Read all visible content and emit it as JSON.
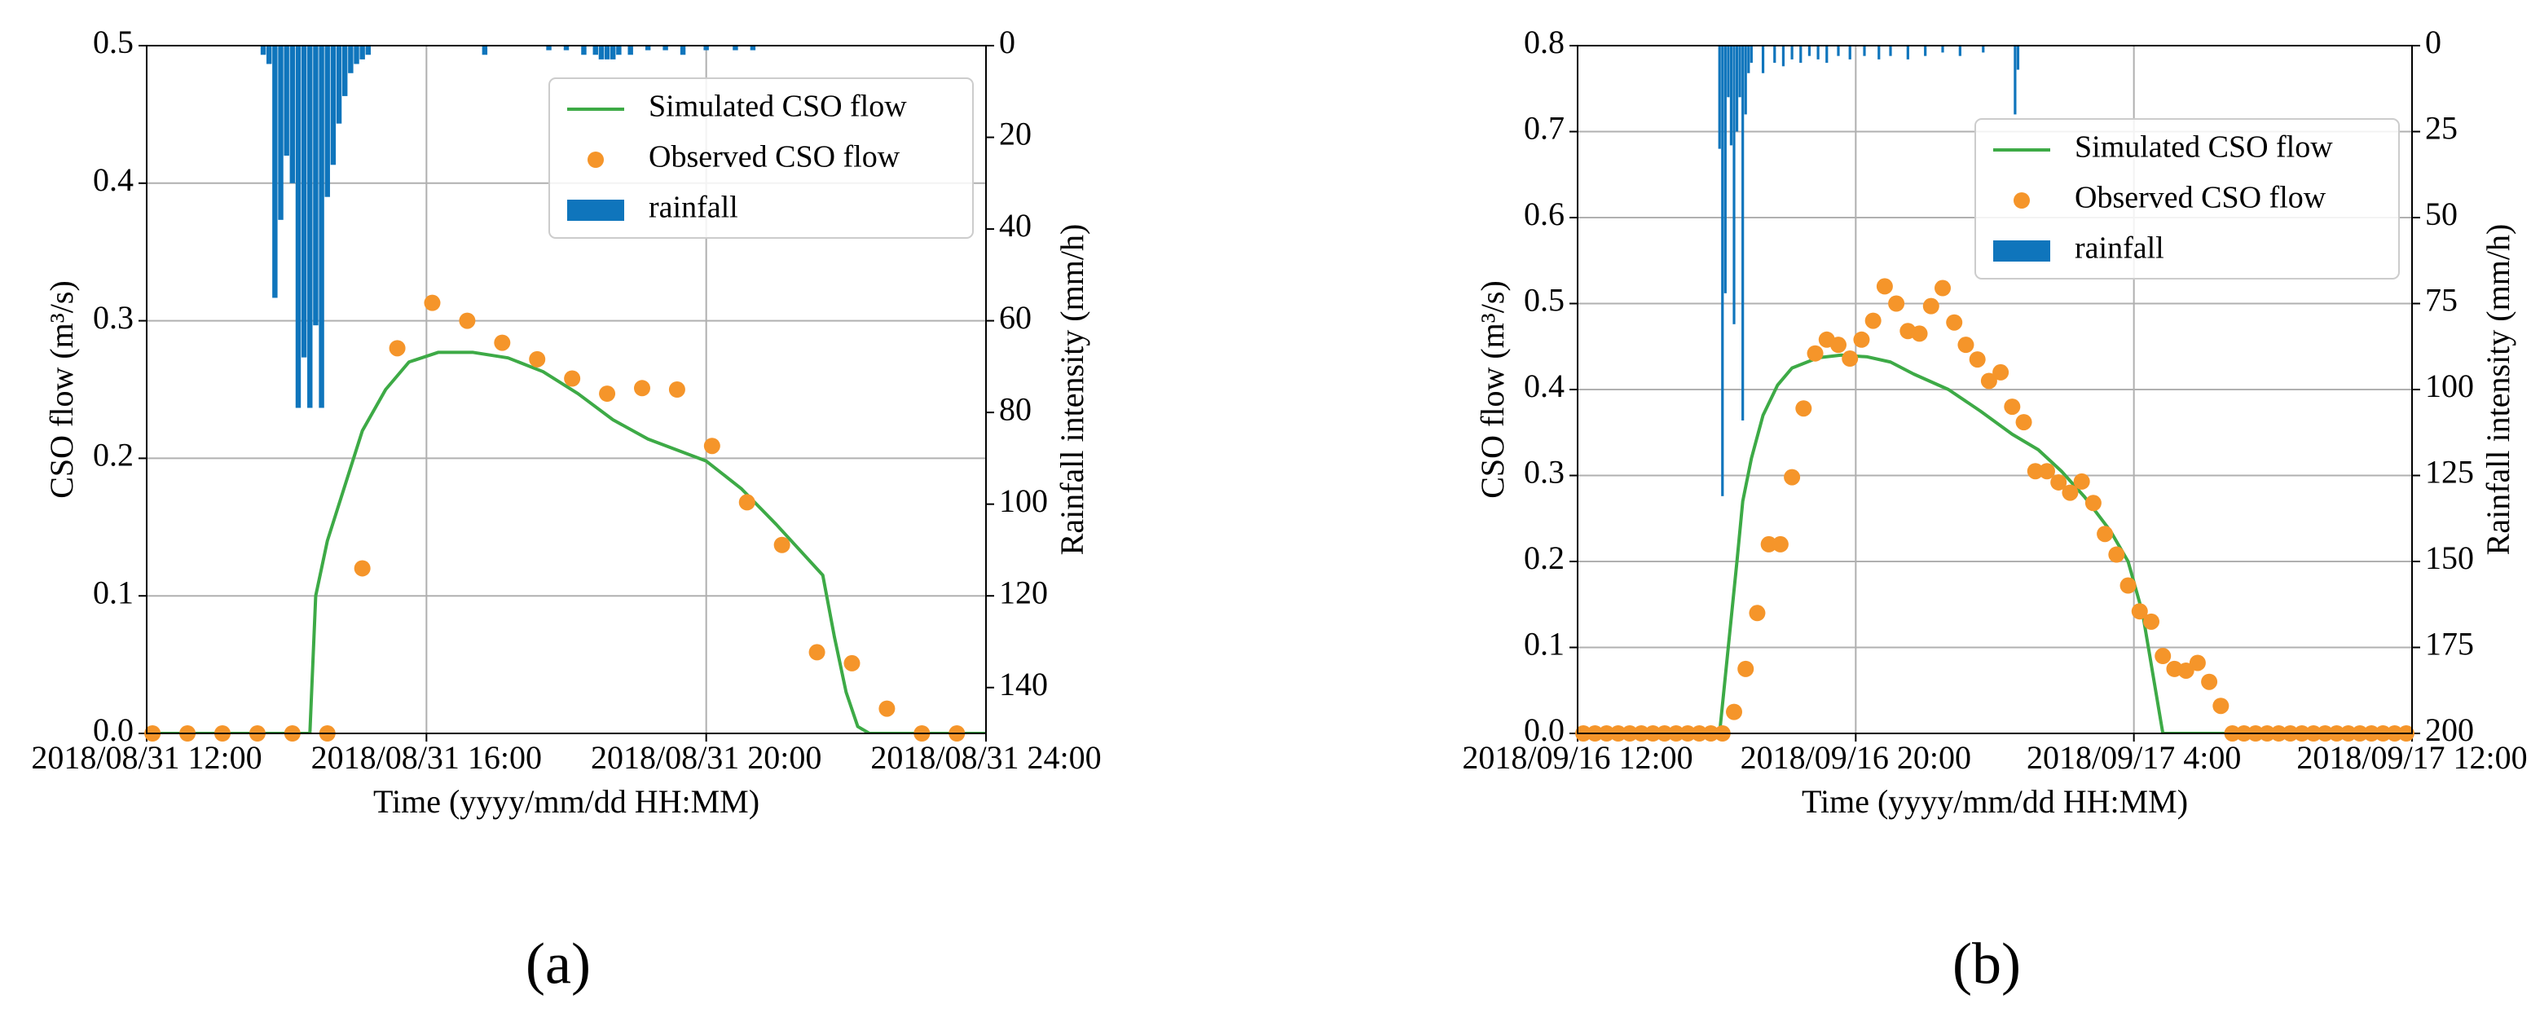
{
  "chart_data": [
    {
      "type": "combo",
      "caption": "(a)",
      "x_label": "Time (yyyy/mm/dd HH:MM)",
      "y_label": "CSO flow (m³/s)",
      "y2_label": "Rainfall intensity (mm/h)",
      "xlim": [
        "2018/08/31 12:00",
        "2018/08/31 24:00"
      ],
      "xticks": [
        "2018/08/31 12:00",
        "2018/08/31 16:00",
        "2018/08/31 20:00",
        "2018/08/31 24:00"
      ],
      "ylim": [
        0,
        0.5
      ],
      "yticks": [
        {
          "value": 0,
          "label": "0.0"
        },
        0.1,
        0.2,
        0.3,
        0.4,
        0.5
      ],
      "y2lim": [
        0,
        150
      ],
      "y2_inverted": true,
      "y2ticks": [
        0,
        20,
        40,
        60,
        80,
        100,
        120,
        140
      ],
      "grid": true,
      "legend": "upper right",
      "series": [
        {
          "name": "Simulated CSO flow",
          "type": "line",
          "color": "#3daa46",
          "x": [
            "2018/08/31 12:00",
            "2018/08/31 14:20",
            "2018/08/31 14:25",
            "2018/08/31 14:35",
            "2018/08/31 14:50",
            "2018/08/31 15:05",
            "2018/08/31 15:25",
            "2018/08/31 15:45",
            "2018/08/31 16:10",
            "2018/08/31 16:40",
            "2018/08/31 17:10",
            "2018/08/31 17:40",
            "2018/08/31 18:10",
            "2018/08/31 18:40",
            "2018/08/31 19:10",
            "2018/08/31 20:00",
            "2018/08/31 20:30",
            "2018/08/31 21:00",
            "2018/08/31 21:40",
            "2018/08/31 21:50",
            "2018/08/31 22:00",
            "2018/08/31 22:10",
            "2018/08/31 22:20",
            "2018/08/31 24:00"
          ],
          "values": [
            0,
            0,
            0.1,
            0.14,
            0.18,
            0.22,
            0.25,
            0.27,
            0.277,
            0.277,
            0.273,
            0.263,
            0.247,
            0.228,
            0.214,
            0.198,
            0.178,
            0.152,
            0.115,
            0.07,
            0.03,
            0.005,
            0,
            0
          ]
        },
        {
          "name": "Observed CSO flow",
          "type": "scatter",
          "color": "#f5952a",
          "x": [
            "2018/08/31 12:05",
            "2018/08/31 12:35",
            "2018/08/31 13:05",
            "2018/08/31 13:35",
            "2018/08/31 14:05",
            "2018/08/31 14:35",
            "2018/08/31 15:05",
            "2018/08/31 15:35",
            "2018/08/31 16:05",
            "2018/08/31 16:35",
            "2018/08/31 17:05",
            "2018/08/31 17:35",
            "2018/08/31 18:05",
            "2018/08/31 18:35",
            "2018/08/31 19:05",
            "2018/08/31 19:35",
            "2018/08/31 20:05",
            "2018/08/31 20:35",
            "2018/08/31 21:05",
            "2018/08/31 21:35",
            "2018/08/31 22:05",
            "2018/08/31 22:35",
            "2018/08/31 23:05",
            "2018/08/31 23:35"
          ],
          "values": [
            0,
            0,
            0,
            0,
            0,
            0,
            0.12,
            0.28,
            0.313,
            0.3,
            0.284,
            0.272,
            0.258,
            0.247,
            0.251,
            0.25,
            0.209,
            0.168,
            0.137,
            0.059,
            0.051,
            0.018,
            0,
            0
          ]
        },
        {
          "name": "rainfall",
          "type": "bar",
          "color": "#0f75bc",
          "axis": "y2",
          "x": [
            "2018/08/31 13:40",
            "2018/08/31 13:45",
            "2018/08/31 13:50",
            "2018/08/31 13:55",
            "2018/08/31 14:00",
            "2018/08/31 14:05",
            "2018/08/31 14:10",
            "2018/08/31 14:15",
            "2018/08/31 14:20",
            "2018/08/31 14:25",
            "2018/08/31 14:30",
            "2018/08/31 14:35",
            "2018/08/31 14:40",
            "2018/08/31 14:45",
            "2018/08/31 14:50",
            "2018/08/31 14:55",
            "2018/08/31 15:00",
            "2018/08/31 15:05",
            "2018/08/31 15:10",
            "2018/08/31 16:50",
            "2018/08/31 17:45",
            "2018/08/31 18:00",
            "2018/08/31 18:15",
            "2018/08/31 18:25",
            "2018/08/31 18:30",
            "2018/08/31 18:35",
            "2018/08/31 18:40",
            "2018/08/31 18:45",
            "2018/08/31 18:55",
            "2018/08/31 19:10",
            "2018/08/31 19:25",
            "2018/08/31 19:40",
            "2018/08/31 20:00",
            "2018/08/31 20:25",
            "2018/08/31 20:40"
          ],
          "values": [
            2,
            4,
            55,
            38,
            24,
            30,
            79,
            68,
            79,
            61,
            79,
            33,
            26,
            17,
            11,
            6,
            4,
            3,
            2,
            2,
            1,
            1,
            2,
            2,
            3,
            3,
            3,
            2,
            2,
            1,
            1,
            2,
            1,
            1,
            1
          ]
        }
      ]
    },
    {
      "type": "combo",
      "caption": "(b)",
      "x_label": "Time (yyyy/mm/dd HH:MM)",
      "y_label": "CSO flow (m³/s)",
      "y2_label": "Rainfall intensity (mm/h)",
      "xlim": [
        "2018/09/16 12:00",
        "2018/09/17 12:00"
      ],
      "xticks": [
        "2018/09/16 12:00",
        "2018/09/16 20:00",
        "2018/09/17 4:00",
        "2018/09/17 12:00"
      ],
      "ylim": [
        0,
        0.8
      ],
      "yticks": [
        {
          "value": 0,
          "label": "0.0"
        },
        0.1,
        0.2,
        0.3,
        0.4,
        0.5,
        0.6,
        0.7,
        0.8
      ],
      "y2lim": [
        0,
        200
      ],
      "y2_inverted": true,
      "y2ticks": [
        0,
        25,
        50,
        75,
        100,
        125,
        150,
        175,
        200
      ],
      "grid": true,
      "legend": "upper right",
      "series": [
        {
          "name": "Simulated CSO flow",
          "type": "line",
          "color": "#3daa46",
          "x": [
            "2018/09/16 12:00",
            "2018/09/16 16:05",
            "2018/09/16 16:20",
            "2018/09/16 16:35",
            "2018/09/16 16:45",
            "2018/09/16 17:00",
            "2018/09/16 17:20",
            "2018/09/16 17:45",
            "2018/09/16 18:10",
            "2018/09/16 18:55",
            "2018/09/16 19:35",
            "2018/09/16 20:20",
            "2018/09/16 21:00",
            "2018/09/16 21:40",
            "2018/09/16 22:40",
            "2018/09/16 23:35",
            "2018/09/17 0:30",
            "2018/09/17 1:15",
            "2018/09/17 1:55",
            "2018/09/17 2:35",
            "2018/09/17 3:20",
            "2018/09/17 3:50",
            "2018/09/17 4:15",
            "2018/09/17 4:35",
            "2018/09/17 4:50",
            "2018/09/17 12:00"
          ],
          "values": [
            0,
            0,
            0.1,
            0.2,
            0.27,
            0.32,
            0.37,
            0.405,
            0.425,
            0.437,
            0.44,
            0.438,
            0.432,
            0.418,
            0.4,
            0.375,
            0.348,
            0.33,
            0.305,
            0.275,
            0.235,
            0.2,
            0.14,
            0.06,
            0,
            0
          ]
        },
        {
          "name": "Observed CSO flow",
          "type": "scatter",
          "color": "#f5952a",
          "x": [
            "2018/09/16 12:10",
            "2018/09/16 12:30",
            "2018/09/16 12:50",
            "2018/09/16 13:10",
            "2018/09/16 13:30",
            "2018/09/16 13:50",
            "2018/09/16 14:10",
            "2018/09/16 14:30",
            "2018/09/16 14:50",
            "2018/09/16 15:10",
            "2018/09/16 15:30",
            "2018/09/16 15:50",
            "2018/09/16 16:10",
            "2018/09/16 16:30",
            "2018/09/16 16:50",
            "2018/09/16 17:10",
            "2018/09/16 17:30",
            "2018/09/16 17:50",
            "2018/09/16 18:10",
            "2018/09/16 18:30",
            "2018/09/16 18:50",
            "2018/09/16 19:10",
            "2018/09/16 19:30",
            "2018/09/16 19:50",
            "2018/09/16 20:10",
            "2018/09/16 20:30",
            "2018/09/16 20:50",
            "2018/09/16 21:10",
            "2018/09/16 21:30",
            "2018/09/16 21:50",
            "2018/09/16 22:10",
            "2018/09/16 22:30",
            "2018/09/16 22:50",
            "2018/09/16 23:10",
            "2018/09/16 23:30",
            "2018/09/16 23:50",
            "2018/09/17 0:10",
            "2018/09/17 0:30",
            "2018/09/17 0:50",
            "2018/09/17 1:10",
            "2018/09/17 1:30",
            "2018/09/17 1:50",
            "2018/09/17 2:10",
            "2018/09/17 2:30",
            "2018/09/17 2:50",
            "2018/09/17 3:10",
            "2018/09/17 3:30",
            "2018/09/17 3:50",
            "2018/09/17 4:10",
            "2018/09/17 4:30",
            "2018/09/17 4:50",
            "2018/09/17 5:10",
            "2018/09/17 5:30",
            "2018/09/17 5:50",
            "2018/09/17 6:10",
            "2018/09/17 6:30",
            "2018/09/17 6:50",
            "2018/09/17 7:10",
            "2018/09/17 7:30",
            "2018/09/17 7:50",
            "2018/09/17 8:10",
            "2018/09/17 8:30",
            "2018/09/17 8:50",
            "2018/09/17 9:10",
            "2018/09/17 9:30",
            "2018/09/17 9:50",
            "2018/09/17 10:10",
            "2018/09/17 10:30",
            "2018/09/17 10:50",
            "2018/09/17 11:10",
            "2018/09/17 11:30",
            "2018/09/17 11:50"
          ],
          "values": [
            0,
            0,
            0,
            0,
            0,
            0,
            0,
            0,
            0,
            0,
            0,
            0,
            0,
            0.025,
            0.075,
            0.14,
            0.22,
            0.22,
            0.298,
            0.378,
            0.442,
            0.458,
            0.452,
            0.436,
            0.458,
            0.48,
            0.52,
            0.5,
            0.468,
            0.465,
            0.497,
            0.518,
            0.478,
            0.452,
            0.435,
            0.41,
            0.42,
            0.38,
            0.362,
            0.305,
            0.305,
            0.292,
            0.28,
            0.293,
            0.268,
            0.232,
            0.208,
            0.172,
            0.142,
            0.13,
            0.09,
            0.075,
            0.073,
            0.082,
            0.06,
            0.032,
            0,
            0,
            0,
            0,
            0,
            0,
            0,
            0,
            0,
            0,
            0,
            0,
            0,
            0,
            0,
            0
          ]
        },
        {
          "name": "rainfall",
          "type": "bar",
          "color": "#0f75bc",
          "axis": "y2",
          "x": [
            "2018/09/16 16:05",
            "2018/09/16 16:10",
            "2018/09/16 16:15",
            "2018/09/16 16:20",
            "2018/09/16 16:25",
            "2018/09/16 16:30",
            "2018/09/16 16:35",
            "2018/09/16 16:40",
            "2018/09/16 16:45",
            "2018/09/16 16:50",
            "2018/09/16 16:55",
            "2018/09/16 17:00",
            "2018/09/16 17:20",
            "2018/09/16 17:40",
            "2018/09/16 17:55",
            "2018/09/16 18:10",
            "2018/09/16 18:25",
            "2018/09/16 18:40",
            "2018/09/16 18:55",
            "2018/09/16 19:10",
            "2018/09/16 19:30",
            "2018/09/16 19:50",
            "2018/09/16 20:15",
            "2018/09/16 20:40",
            "2018/09/16 21:00",
            "2018/09/16 21:30",
            "2018/09/16 22:00",
            "2018/09/16 22:30",
            "2018/09/16 23:00",
            "2018/09/16 23:40",
            "2018/09/17 0:35",
            "2018/09/17 0:40"
          ],
          "values": [
            30,
            131,
            72,
            15,
            29,
            81,
            25,
            15,
            109,
            20,
            8,
            5,
            8,
            5,
            6,
            4,
            5,
            3,
            4,
            5,
            3,
            4,
            3,
            4,
            3,
            4,
            3,
            2,
            3,
            2,
            20,
            7
          ]
        }
      ]
    }
  ]
}
